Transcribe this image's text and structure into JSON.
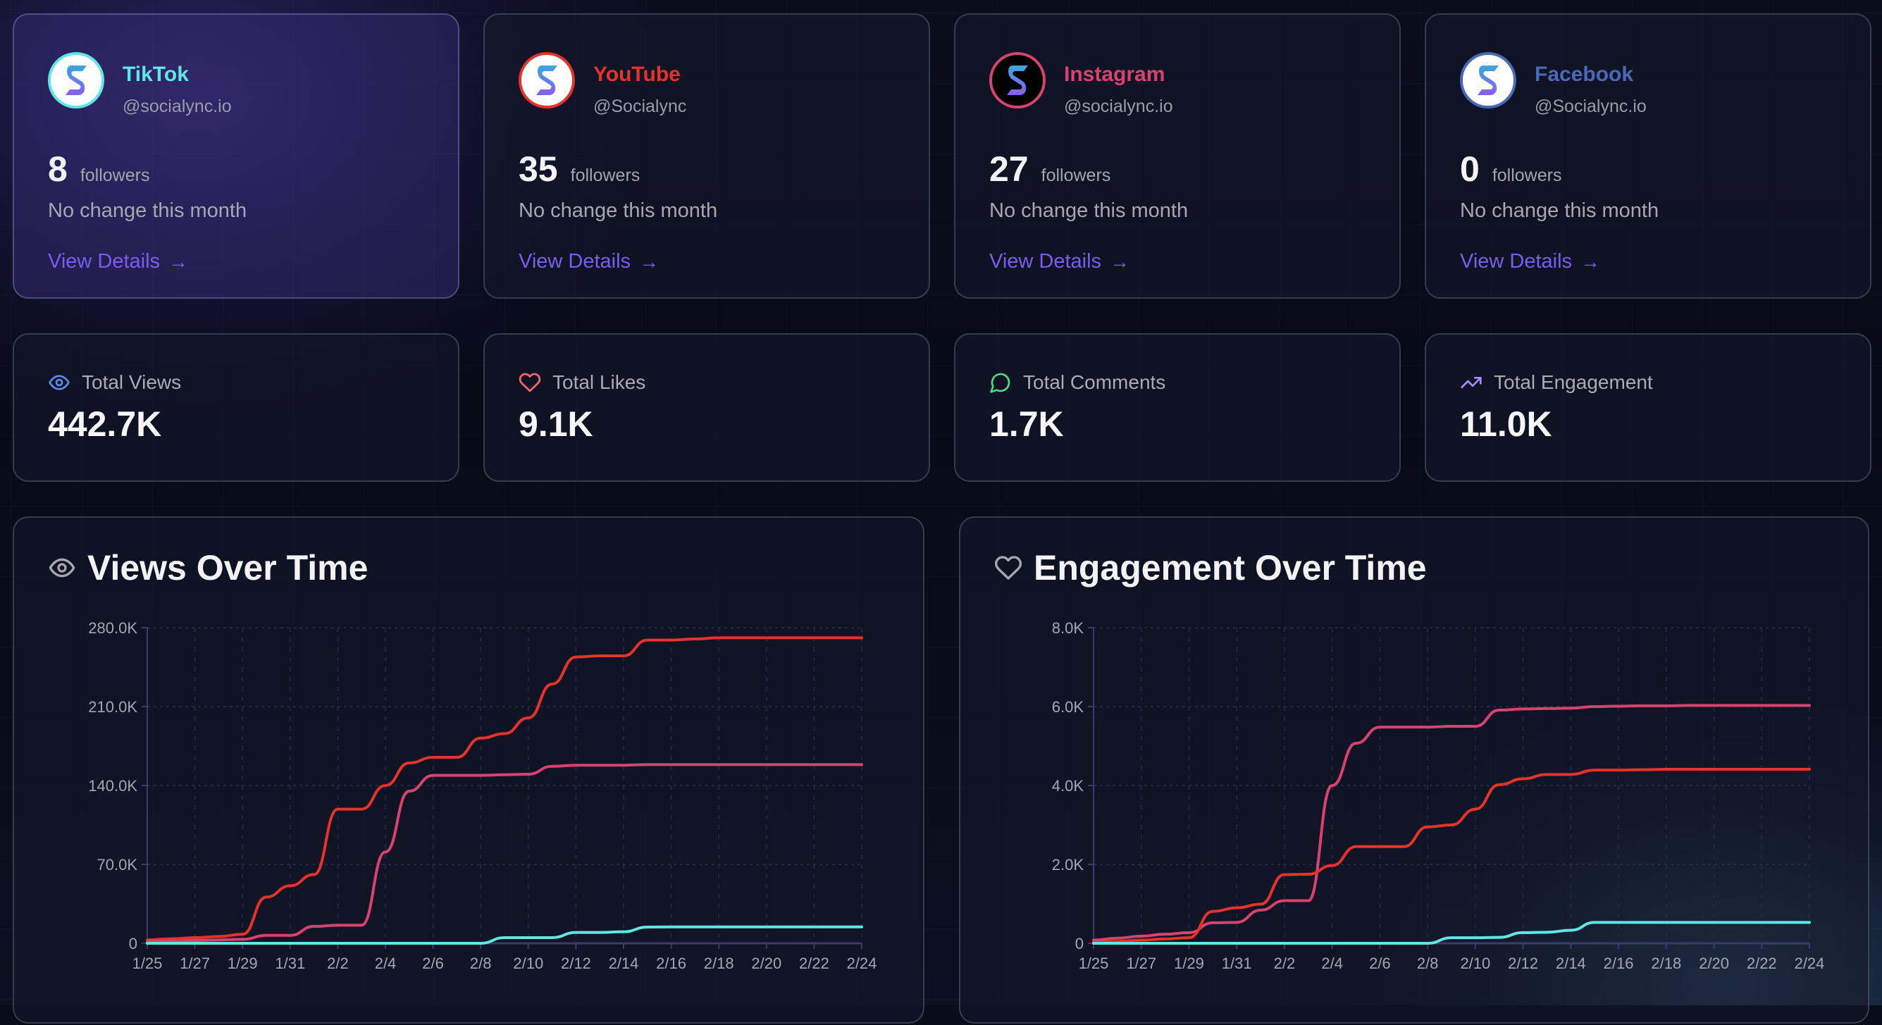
{
  "platforms": [
    {
      "name": "TikTok",
      "handle": "@socialync.io",
      "followers": "8",
      "followers_label": "followers",
      "change": "No change this month",
      "link": "View Details",
      "arrow": "→",
      "color": "#5ee7e3",
      "avatar_bg": "#ffffff",
      "icon": "socialync-logo-icon"
    },
    {
      "name": "YouTube",
      "handle": "@Socialync",
      "followers": "35",
      "followers_label": "followers",
      "change": "No change this month",
      "link": "View Details",
      "arrow": "→",
      "color": "#e5322b",
      "avatar_bg": "#ffffff",
      "icon": "socialync-logo-icon"
    },
    {
      "name": "Instagram",
      "handle": "@socialync.io",
      "followers": "27",
      "followers_label": "followers",
      "change": "No change this month",
      "link": "View Details",
      "arrow": "→",
      "color": "#d8426f",
      "avatar_bg": "#000000",
      "icon": "socialync-logo-icon"
    },
    {
      "name": "Facebook",
      "handle": "@Socialync.io",
      "followers": "0",
      "followers_label": "followers",
      "change": "No change this month",
      "link": "View Details",
      "arrow": "→",
      "color": "#4a68b8",
      "avatar_bg": "#ffffff",
      "icon": "socialync-logo-icon"
    }
  ],
  "stats": [
    {
      "label": "Total Views",
      "value": "442.7K",
      "icon": "eye-icon",
      "color": "#5b8def"
    },
    {
      "label": "Total Likes",
      "value": "9.1K",
      "icon": "heart-icon",
      "color": "#f26b6b"
    },
    {
      "label": "Total Comments",
      "value": "1.7K",
      "icon": "message-circle-icon",
      "color": "#4ade80"
    },
    {
      "label": "Total Engagement",
      "value": "11.0K",
      "icon": "trending-up-icon",
      "color": "#a78bfa"
    }
  ],
  "panels": {
    "views_title": "Views Over Time",
    "engagement_title": "Engagement Over Time"
  },
  "chart_data": [
    {
      "type": "line",
      "title": "Views Over Time",
      "xlabel": "",
      "ylabel": "",
      "x": [
        "1/25",
        "1/26",
        "1/27",
        "1/28",
        "1/29",
        "1/30",
        "1/31",
        "2/1",
        "2/2",
        "2/3",
        "2/4",
        "2/5",
        "2/6",
        "2/7",
        "2/8",
        "2/9",
        "2/10",
        "2/11",
        "2/12",
        "2/13",
        "2/14",
        "2/15",
        "2/16",
        "2/17",
        "2/18",
        "2/19",
        "2/20",
        "2/21",
        "2/22",
        "2/23",
        "2/24"
      ],
      "x_tick_labels": [
        "1/25",
        "1/27",
        "1/29",
        "1/31",
        "2/2",
        "2/4",
        "2/6",
        "2/8",
        "2/10",
        "2/12",
        "2/14",
        "2/16",
        "2/18",
        "2/20",
        "2/22",
        "2/24"
      ],
      "y_ticks": [
        0,
        70000,
        140000,
        210000,
        280000
      ],
      "y_tick_labels": [
        "0",
        "70.0K",
        "140.0K",
        "210.0K",
        "280.0K"
      ],
      "ylim": [
        0,
        280000
      ],
      "grid": true,
      "series": [
        {
          "name": "YouTube",
          "color": "#e5322b",
          "values": [
            3000,
            4000,
            5000,
            6000,
            8000,
            41000,
            51000,
            61000,
            119000,
            119000,
            140000,
            160000,
            165000,
            165000,
            182000,
            186000,
            200000,
            230000,
            254000,
            255000,
            255000,
            269000,
            269000,
            270000,
            271000,
            271000,
            271000,
            271000,
            271000,
            271000,
            271000
          ]
        },
        {
          "name": "Instagram",
          "color": "#d8426f",
          "values": [
            1500,
            2000,
            2500,
            3000,
            3500,
            7000,
            7000,
            15000,
            16000,
            16000,
            81000,
            135000,
            149000,
            149000,
            149000,
            149500,
            150000,
            157000,
            158000,
            158000,
            158000,
            158500,
            158500,
            158500,
            158500,
            158500,
            158500,
            158500,
            158500,
            158500,
            158500
          ]
        },
        {
          "name": "TikTok",
          "color": "#5ee7e3",
          "values": [
            0,
            0,
            0,
            0,
            0,
            0,
            0,
            0,
            0,
            0,
            0,
            0,
            0,
            0,
            0,
            5000,
            5000,
            5000,
            9600,
            9600,
            10200,
            14400,
            14500,
            14500,
            14500,
            14500,
            14500,
            14500,
            14500,
            14500,
            14500
          ]
        }
      ]
    },
    {
      "type": "line",
      "title": "Engagement Over Time",
      "xlabel": "",
      "ylabel": "",
      "x": [
        "1/25",
        "1/26",
        "1/27",
        "1/28",
        "1/29",
        "1/30",
        "1/31",
        "2/1",
        "2/2",
        "2/3",
        "2/4",
        "2/5",
        "2/6",
        "2/7",
        "2/8",
        "2/9",
        "2/10",
        "2/11",
        "2/12",
        "2/13",
        "2/14",
        "2/15",
        "2/16",
        "2/17",
        "2/18",
        "2/19",
        "2/20",
        "2/21",
        "2/22",
        "2/23",
        "2/24"
      ],
      "x_tick_labels": [
        "1/25",
        "1/27",
        "1/29",
        "1/31",
        "2/2",
        "2/4",
        "2/6",
        "2/8",
        "2/10",
        "2/12",
        "2/14",
        "2/16",
        "2/18",
        "2/20",
        "2/22",
        "2/24"
      ],
      "y_ticks": [
        0,
        2000,
        4000,
        6000,
        8000
      ],
      "y_tick_labels": [
        "0",
        "2.0K",
        "4.0K",
        "6.0K",
        "8.0K"
      ],
      "ylim": [
        0,
        8000
      ],
      "grid": true,
      "series": [
        {
          "name": "Instagram",
          "color": "#d8426f",
          "values": [
            80,
            130,
            180,
            230,
            270,
            520,
            530,
            840,
            1080,
            1080,
            4000,
            5070,
            5480,
            5480,
            5480,
            5500,
            5500,
            5910,
            5940,
            5950,
            5960,
            6000,
            6010,
            6020,
            6020,
            6030,
            6030,
            6030,
            6030,
            6030,
            6030
          ]
        },
        {
          "name": "YouTube",
          "color": "#e5322b",
          "values": [
            20,
            50,
            80,
            110,
            140,
            810,
            900,
            990,
            1740,
            1750,
            1970,
            2450,
            2450,
            2450,
            2950,
            3000,
            3400,
            4020,
            4170,
            4280,
            4280,
            4390,
            4390,
            4400,
            4410,
            4410,
            4410,
            4410,
            4410,
            4410,
            4410
          ]
        },
        {
          "name": "TikTok",
          "color": "#5ee7e3",
          "values": [
            0,
            0,
            0,
            0,
            0,
            0,
            0,
            0,
            0,
            0,
            0,
            0,
            0,
            0,
            0,
            140,
            140,
            150,
            270,
            280,
            330,
            530,
            530,
            530,
            530,
            530,
            530,
            530,
            530,
            530,
            530
          ]
        }
      ]
    }
  ]
}
